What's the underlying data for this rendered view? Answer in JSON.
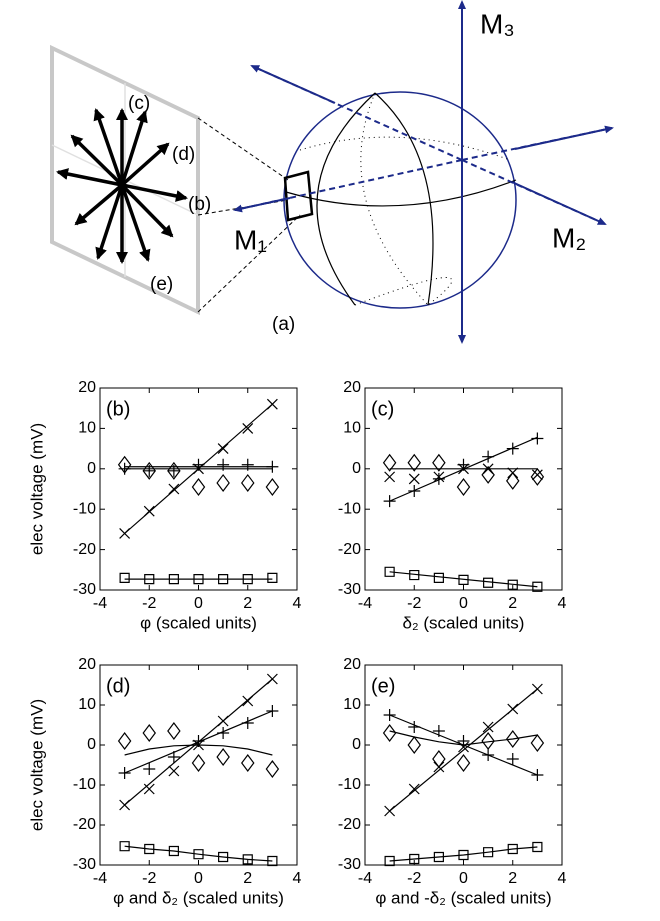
{
  "diagram": {
    "label_m3": "M₃",
    "label_m2": "M₂",
    "label_m1": "M₁",
    "label_a": "(a)",
    "label_b": "(b)",
    "label_c": "(c)",
    "label_d": "(d)",
    "label_e": "(e)"
  },
  "chart_data": [
    {
      "type": "line",
      "panel_label": "(b)",
      "xlabel": "φ (scaled units)",
      "ylabel": "elec voltage (mV)",
      "xlim": [
        -4,
        4
      ],
      "xticks": [
        -4,
        -2,
        0,
        2,
        4
      ],
      "ylim": [
        -30,
        20
      ],
      "yticks": [
        -30,
        -20,
        -10,
        0,
        10,
        20
      ],
      "color": "#000000",
      "series": [
        {
          "marker": "x",
          "x": [
            -3,
            -2,
            -1,
            0,
            1,
            2,
            3
          ],
          "values": [
            -16,
            -10.5,
            -5,
            0,
            5,
            10,
            16
          ]
        },
        {
          "marker": "+",
          "x": [
            -3,
            -2,
            -1,
            0,
            1,
            2,
            3
          ],
          "values": [
            0,
            -0.5,
            -0.5,
            1,
            1,
            1,
            0.5
          ]
        },
        {
          "marker": "diamond",
          "x": [
            -3,
            -2,
            -1,
            0,
            1,
            2,
            3
          ],
          "values": [
            1,
            -0.5,
            -0.5,
            -4.5,
            -3.5,
            -3.5,
            -4.5
          ]
        },
        {
          "marker": "square",
          "x": [
            -3,
            -2,
            -1,
            0,
            1,
            2,
            3
          ],
          "values": [
            -27,
            -27.3,
            -27.3,
            -27.3,
            -27.3,
            -27.3,
            -27
          ]
        },
        {
          "marker": "none",
          "x": [
            -3,
            3
          ],
          "values": [
            -16,
            16
          ]
        },
        {
          "marker": "none",
          "x": [
            -3,
            3
          ],
          "values": [
            0.5,
            0.5
          ]
        },
        {
          "marker": "none",
          "x": [
            -3,
            3
          ],
          "values": [
            0,
            0
          ]
        },
        {
          "marker": "none",
          "x": [
            -3,
            3
          ],
          "values": [
            -27.3,
            -27.3
          ]
        }
      ]
    },
    {
      "type": "line",
      "panel_label": "(c)",
      "xlabel": "δ₂ (scaled units)",
      "xlim": [
        -4,
        4
      ],
      "xticks": [
        -4,
        -2,
        0,
        2,
        4
      ],
      "ylim": [
        -30,
        20
      ],
      "yticks": [
        -30,
        -20,
        -10,
        0,
        10,
        20
      ],
      "color": "#000000",
      "series": [
        {
          "marker": "x",
          "x": [
            -3,
            -2,
            -1,
            0,
            1,
            2,
            3
          ],
          "values": [
            -2,
            -2.5,
            -2,
            0,
            0,
            -1,
            -1.5
          ]
        },
        {
          "marker": "+",
          "x": [
            -3,
            -2,
            -1,
            0,
            1,
            2,
            3
          ],
          "values": [
            -8,
            -5.5,
            -2.5,
            1,
            3,
            5,
            7.5
          ]
        },
        {
          "marker": "diamond",
          "x": [
            -3,
            -2,
            -1,
            0,
            1,
            2,
            3
          ],
          "values": [
            1.5,
            1.5,
            1.5,
            -4.5,
            -1.5,
            -3,
            -2
          ]
        },
        {
          "marker": "square",
          "x": [
            -3,
            -2,
            -1,
            0,
            1,
            2,
            3
          ],
          "values": [
            -25.5,
            -26.3,
            -27,
            -27.5,
            -28.2,
            -28.7,
            -29.2
          ]
        },
        {
          "marker": "none",
          "x": [
            -3,
            3
          ],
          "values": [
            0,
            0
          ]
        },
        {
          "marker": "none",
          "x": [
            -3,
            3
          ],
          "values": [
            -8,
            7.8
          ]
        },
        {
          "marker": "none",
          "x": [
            -3,
            3
          ],
          "values": [
            -25.5,
            -29.2
          ]
        }
      ]
    },
    {
      "type": "line",
      "panel_label": "(d)",
      "xlabel": "φ and δ₂ (scaled units)",
      "ylabel": "elec voltage (mV)",
      "xlim": [
        -4,
        4
      ],
      "xticks": [
        -4,
        -2,
        0,
        2,
        4
      ],
      "ylim": [
        -30,
        20
      ],
      "yticks": [
        -30,
        -20,
        -10,
        0,
        10,
        20
      ],
      "color": "#000000",
      "series": [
        {
          "marker": "x",
          "x": [
            -3,
            -2,
            -1,
            0,
            1,
            2,
            3
          ],
          "values": [
            -15,
            -11,
            -6.5,
            0,
            6,
            11,
            16.5
          ]
        },
        {
          "marker": "+",
          "x": [
            -3,
            -2,
            -1,
            0,
            1,
            2,
            3
          ],
          "values": [
            -7,
            -6,
            -3,
            1,
            3,
            5.5,
            8.5
          ]
        },
        {
          "marker": "diamond",
          "x": [
            -3,
            -2,
            -1,
            0,
            1,
            2,
            3
          ],
          "values": [
            1,
            3,
            3.5,
            -4.5,
            -3,
            -4.5,
            -6
          ]
        },
        {
          "marker": "square",
          "x": [
            -3,
            -2,
            -1,
            0,
            1,
            2,
            3
          ],
          "values": [
            -25.3,
            -26,
            -26.5,
            -27.3,
            -28,
            -28.6,
            -29
          ]
        },
        {
          "marker": "none",
          "x": [
            -3,
            3
          ],
          "values": [
            -15,
            16.5
          ]
        },
        {
          "marker": "none",
          "x": [
            -3,
            3
          ],
          "values": [
            -7,
            8.5
          ]
        },
        {
          "marker": "none",
          "x": [
            -3,
            -2,
            -1,
            0,
            1,
            2,
            3
          ],
          "values": [
            -2.5,
            -1,
            -0.2,
            0,
            -0.2,
            -1,
            -2.5
          ]
        },
        {
          "marker": "none",
          "x": [
            -3,
            -2,
            -1,
            0,
            1,
            2,
            3
          ],
          "values": [
            -25.3,
            -26,
            -26.5,
            -27.3,
            -28,
            -28.6,
            -29
          ]
        }
      ]
    },
    {
      "type": "line",
      "panel_label": "(e)",
      "xlabel": "φ and -δ₂ (scaled units)",
      "xlim": [
        -4,
        4
      ],
      "xticks": [
        -4,
        -2,
        0,
        2,
        4
      ],
      "ylim": [
        -30,
        20
      ],
      "yticks": [
        -30,
        -20,
        -10,
        0,
        10,
        20
      ],
      "color": "#000000",
      "series": [
        {
          "marker": "x",
          "x": [
            -3,
            -2,
            -1,
            0,
            1,
            2,
            3
          ],
          "values": [
            -16.5,
            -11,
            -5.5,
            -0.5,
            4.5,
            9,
            14
          ]
        },
        {
          "marker": "+",
          "x": [
            -3,
            -2,
            -1,
            0,
            1,
            2,
            3
          ],
          "values": [
            7.5,
            4.5,
            3.5,
            1,
            -2.5,
            -3.5,
            -7.5
          ]
        },
        {
          "marker": "diamond",
          "x": [
            -3,
            -2,
            -1,
            0,
            1,
            2,
            3
          ],
          "values": [
            3,
            0,
            -3.5,
            -4.5,
            1,
            1.5,
            0.5
          ]
        },
        {
          "marker": "square",
          "x": [
            -3,
            -2,
            -1,
            0,
            1,
            2,
            3
          ],
          "values": [
            -29,
            -28.5,
            -28,
            -27.5,
            -26.8,
            -26,
            -25.5
          ]
        },
        {
          "marker": "none",
          "x": [
            -3,
            3
          ],
          "values": [
            -16.5,
            14
          ]
        },
        {
          "marker": "none",
          "x": [
            -3,
            3
          ],
          "values": [
            7.5,
            -7.5
          ]
        },
        {
          "marker": "none",
          "x": [
            -3,
            -2,
            -1,
            0,
            1,
            2,
            3
          ],
          "values": [
            3.5,
            2,
            0.8,
            0,
            0.8,
            1.5,
            2.5
          ]
        },
        {
          "marker": "none",
          "x": [
            -3,
            -2,
            -1,
            0,
            1,
            2,
            3
          ],
          "values": [
            -29,
            -28.5,
            -28,
            -27.5,
            -26.8,
            -26,
            -25.5
          ]
        }
      ]
    }
  ]
}
